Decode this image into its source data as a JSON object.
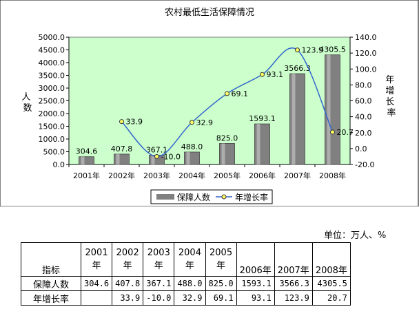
{
  "chart_data": {
    "type": "bar+line",
    "title": "农村最低生活保障情况",
    "categories": [
      "2001年",
      "2002年",
      "2003年",
      "2004年",
      "2005年",
      "2006年",
      "2007年",
      "2008年"
    ],
    "series": [
      {
        "name": "保障人数",
        "type": "bar",
        "axis": "left",
        "values": [
          304.6,
          407.8,
          367.1,
          488.0,
          825.0,
          1593.1,
          3566.3,
          4305.5
        ],
        "labels": [
          "304.6",
          "407.8",
          "367.1",
          "488.0",
          "825.0",
          "1593.1",
          "3566.3",
          "4305.5"
        ]
      },
      {
        "name": "年增长率",
        "type": "line",
        "axis": "right",
        "values": [
          null,
          33.9,
          -10.0,
          32.9,
          69.1,
          93.1,
          123.9,
          20.7
        ],
        "labels": [
          "",
          "33.9",
          "-10.0",
          "32.9",
          "69.1",
          "93.1",
          "123.9",
          "20.7"
        ]
      }
    ],
    "ylabel_left": "人数",
    "ylabel_right": "年增长率",
    "ylim_left": [
      0,
      5000
    ],
    "ylim_right": [
      -20,
      140
    ],
    "yticks_left": [
      "0.0",
      "500.0",
      "1000.0",
      "1500.0",
      "2000.0",
      "2500.0",
      "3000.0",
      "3500.0",
      "4000.0",
      "4500.0",
      "5000.0"
    ],
    "yticks_right": [
      "-20.0",
      "0.0",
      "20.0",
      "40.0",
      "60.0",
      "80.0",
      "100.0",
      "120.0",
      "140.0"
    ],
    "grid": false,
    "legend": "bottom",
    "colors": {
      "plot_bg": "#ccffcc",
      "bar": "#808080",
      "line": "#3366cc",
      "marker": "#ffff66",
      "outer_bg": "#ffffff"
    }
  },
  "table": {
    "unit": "单位：万人、%",
    "header_label": "指标",
    "years": [
      {
        "top": "2001",
        "bottom": "年"
      },
      {
        "top": "2002",
        "bottom": "年"
      },
      {
        "top": "2003",
        "bottom": "年"
      },
      {
        "top": "2004",
        "bottom": "年"
      },
      {
        "top": "2005",
        "bottom": "年"
      },
      {
        "top": "",
        "bottom": "2006年"
      },
      {
        "top": "",
        "bottom": "2007年"
      },
      {
        "top": "",
        "bottom": "2008年"
      }
    ],
    "rows": [
      {
        "label": "保障人数",
        "cells": [
          "304.6",
          "407.8",
          "367.1",
          "488.0",
          "825.0",
          "1593.1",
          "3566.3",
          "4305.5"
        ]
      },
      {
        "label": "年增长率",
        "cells": [
          "",
          "33.9",
          "-10.0",
          "32.9",
          "69.1",
          "93.1",
          "123.9",
          "20.7"
        ]
      }
    ]
  }
}
